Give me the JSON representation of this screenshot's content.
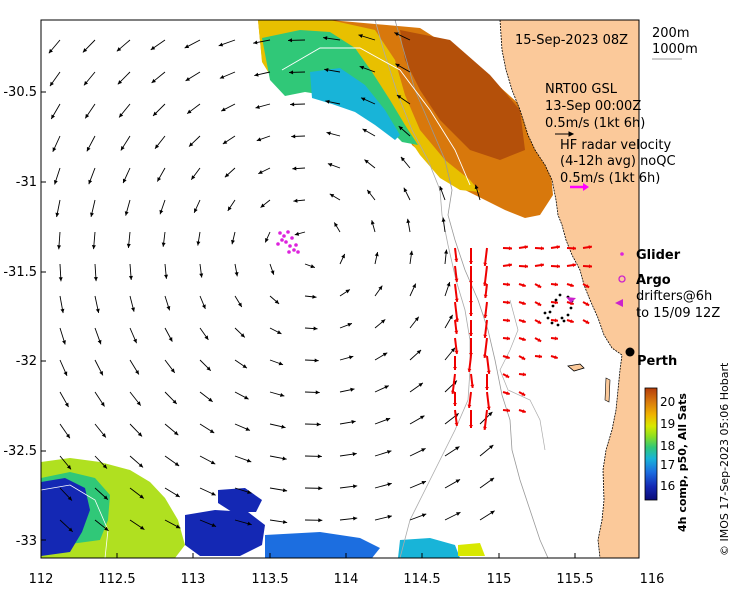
{
  "header": {
    "timestamp": "15-Sep-2023 08Z",
    "isobath_1": "200m",
    "isobath_2": "1000m"
  },
  "legend": {
    "model_line1": "NRT00 GSL",
    "model_line2": "13-Sep 00:00Z",
    "model_line3": "0.5m/s (1kt 6h)",
    "radar_line1": "HF radar velocity",
    "radar_line2": "(4-12h avg) noQC",
    "radar_line3": "0.5m/s (1kt 6h)",
    "glider": "Glider",
    "argo": "Argo",
    "drifters_line1": "drifters@6h",
    "drifters_line2": "to 15/09 12Z",
    "city": "Perth"
  },
  "colorbar": {
    "title": "4h comp, p50, All Sats",
    "ticks": [
      "20",
      "19",
      "18",
      "17",
      "16"
    ],
    "colors": [
      "#b43c0a",
      "#d8780c",
      "#f0b400",
      "#d8e800",
      "#8ee020",
      "#30c878",
      "#18b4d8",
      "#1c6ee0",
      "#1428b4",
      "#0a0a78"
    ]
  },
  "credit": "© IMOS 17-Sep-2023 05:06 Hobart",
  "axes": {
    "x_ticks": [
      "112",
      "112.5",
      "113",
      "113.5",
      "114",
      "114.5",
      "115",
      "115.5",
      "116"
    ],
    "y_ticks": [
      "-30.5",
      "-31",
      "-31.5",
      "-32",
      "-32.5",
      "-33"
    ]
  },
  "colors": {
    "land": "#fbc99a",
    "radar_arrow": "#ee0000",
    "radar_scale": "#ff00ff",
    "glider": "#dd22dd",
    "argo": "#cc22cc",
    "drifter": "#cc22cc"
  }
}
